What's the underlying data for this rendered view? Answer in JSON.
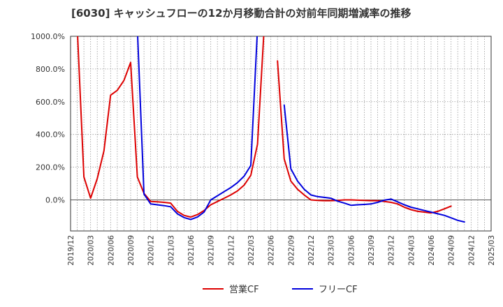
{
  "chart_data": {
    "type": "line",
    "title": "[6030]  キャッシュフローの12か月移動合計の対前年同期増減率の推移",
    "xlabel": "",
    "ylabel": "",
    "ylim": [
      -190,
      1000
    ],
    "y_ticks": [
      1000,
      800,
      600,
      400,
      200,
      0
    ],
    "y_tick_labels": [
      "1000.0%",
      "800.0%",
      "600.0%",
      "400.0%",
      "200.0%",
      "0.0%"
    ],
    "x_tick_labels": [
      "2019/12",
      "2020/03",
      "2020/06",
      "2020/09",
      "2020/12",
      "2021/03",
      "2021/06",
      "2021/09",
      "2021/12",
      "2022/03",
      "2022/06",
      "2022/09",
      "2022/12",
      "2023/03",
      "2023/06",
      "2023/09",
      "2023/12",
      "2024/03",
      "2024/06",
      "2024/09",
      "2024/12",
      "2025/03"
    ],
    "grid": true,
    "legend_position": "bottom",
    "series": [
      {
        "name": "営業CF",
        "color": "#dd0000",
        "points": [
          [
            1,
            1050
          ],
          [
            2,
            140
          ],
          [
            3,
            10
          ],
          [
            4,
            130
          ],
          [
            5,
            300
          ],
          [
            6,
            640
          ],
          [
            7,
            670
          ],
          [
            8,
            730
          ],
          [
            9,
            840
          ],
          [
            10,
            140
          ],
          [
            11,
            40
          ],
          [
            12,
            -10
          ],
          [
            13,
            -12
          ],
          [
            14,
            -15
          ],
          [
            15,
            -20
          ],
          [
            16,
            -70
          ],
          [
            17,
            -95
          ],
          [
            18,
            -105
          ],
          [
            19,
            -90
          ],
          [
            20,
            -65
          ],
          [
            21,
            -30
          ],
          [
            22,
            -10
          ],
          [
            23,
            10
          ],
          [
            24,
            30
          ],
          [
            25,
            55
          ],
          [
            26,
            90
          ],
          [
            27,
            150
          ],
          [
            28,
            340
          ],
          [
            29,
            1050
          ],
          null,
          [
            31,
            850
          ],
          [
            32,
            250
          ],
          [
            33,
            115
          ],
          [
            34,
            65
          ],
          [
            35,
            30
          ],
          [
            36,
            0
          ],
          [
            37,
            -3
          ],
          [
            38,
            -5
          ],
          [
            39,
            -5
          ],
          [
            40,
            -3
          ],
          [
            41,
            0
          ],
          [
            42,
            0
          ],
          [
            43,
            -2
          ],
          [
            44,
            -3
          ],
          [
            45,
            -5
          ],
          [
            46,
            -5
          ],
          [
            47,
            -10
          ],
          [
            48,
            -15
          ],
          [
            49,
            -25
          ],
          [
            50,
            -45
          ],
          [
            51,
            -60
          ],
          [
            52,
            -70
          ],
          [
            53,
            -75
          ],
          [
            54,
            -80
          ],
          [
            55,
            -70
          ],
          [
            56,
            -55
          ],
          [
            57,
            -38
          ]
        ]
      },
      {
        "name": "フリーCF",
        "color": "#0000dd",
        "points": [
          [
            10,
            1050
          ],
          [
            11,
            35
          ],
          [
            12,
            -25
          ],
          [
            13,
            -30
          ],
          [
            14,
            -35
          ],
          [
            15,
            -42
          ],
          [
            16,
            -85
          ],
          [
            17,
            -108
          ],
          [
            18,
            -120
          ],
          [
            19,
            -105
          ],
          [
            20,
            -75
          ],
          [
            21,
            0
          ],
          [
            22,
            25
          ],
          [
            23,
            50
          ],
          [
            24,
            75
          ],
          [
            25,
            105
          ],
          [
            26,
            145
          ],
          [
            27,
            210
          ],
          [
            28,
            1050
          ],
          null,
          [
            32,
            580
          ],
          [
            33,
            190
          ],
          [
            34,
            115
          ],
          [
            35,
            65
          ],
          [
            36,
            30
          ],
          [
            37,
            20
          ],
          [
            38,
            15
          ],
          [
            39,
            10
          ],
          [
            40,
            -8
          ],
          [
            41,
            -20
          ],
          [
            42,
            -33
          ],
          [
            43,
            -30
          ],
          [
            44,
            -28
          ],
          [
            45,
            -25
          ],
          [
            46,
            -15
          ],
          [
            47,
            -2
          ],
          [
            48,
            5
          ],
          [
            49,
            -12
          ],
          [
            50,
            -30
          ],
          [
            51,
            -45
          ],
          [
            52,
            -55
          ],
          [
            53,
            -65
          ],
          [
            54,
            -75
          ],
          [
            55,
            -85
          ],
          [
            56,
            -95
          ],
          [
            57,
            -110
          ],
          [
            58,
            -125
          ],
          [
            59,
            -135
          ]
        ]
      }
    ]
  }
}
